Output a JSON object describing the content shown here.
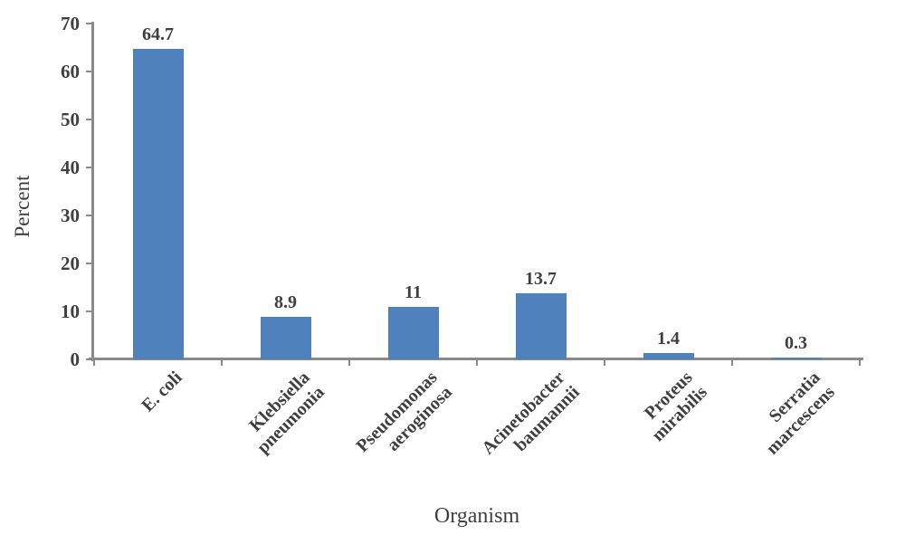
{
  "chart_data": {
    "type": "bar",
    "title": "",
    "xlabel": "Organism",
    "ylabel": "Percent",
    "categories": [
      {
        "lines": [
          "E. coli"
        ]
      },
      {
        "lines": [
          "Klebsiella",
          "pneumonia"
        ]
      },
      {
        "lines": [
          "Pseudomonas",
          "aeroginosa"
        ]
      },
      {
        "lines": [
          "Acinetobacter",
          "baumannii"
        ]
      },
      {
        "lines": [
          "Proteus",
          "mirabilis"
        ]
      },
      {
        "lines": [
          "Serratia",
          "marcescens"
        ]
      }
    ],
    "values": [
      64.7,
      8.9,
      11,
      13.7,
      1.4,
      0.3
    ],
    "value_labels": [
      "64.7",
      "8.9",
      "11",
      "13.7",
      "1.4",
      "0.3"
    ],
    "yticks": [
      0,
      10,
      20,
      30,
      40,
      50,
      60,
      70
    ],
    "ylim": [
      0,
      70
    ],
    "grid": false,
    "legend": "none",
    "bar_color": "#4f81bd",
    "axis_color": "#8a8a8a",
    "text_color": "#3f3f3f"
  }
}
